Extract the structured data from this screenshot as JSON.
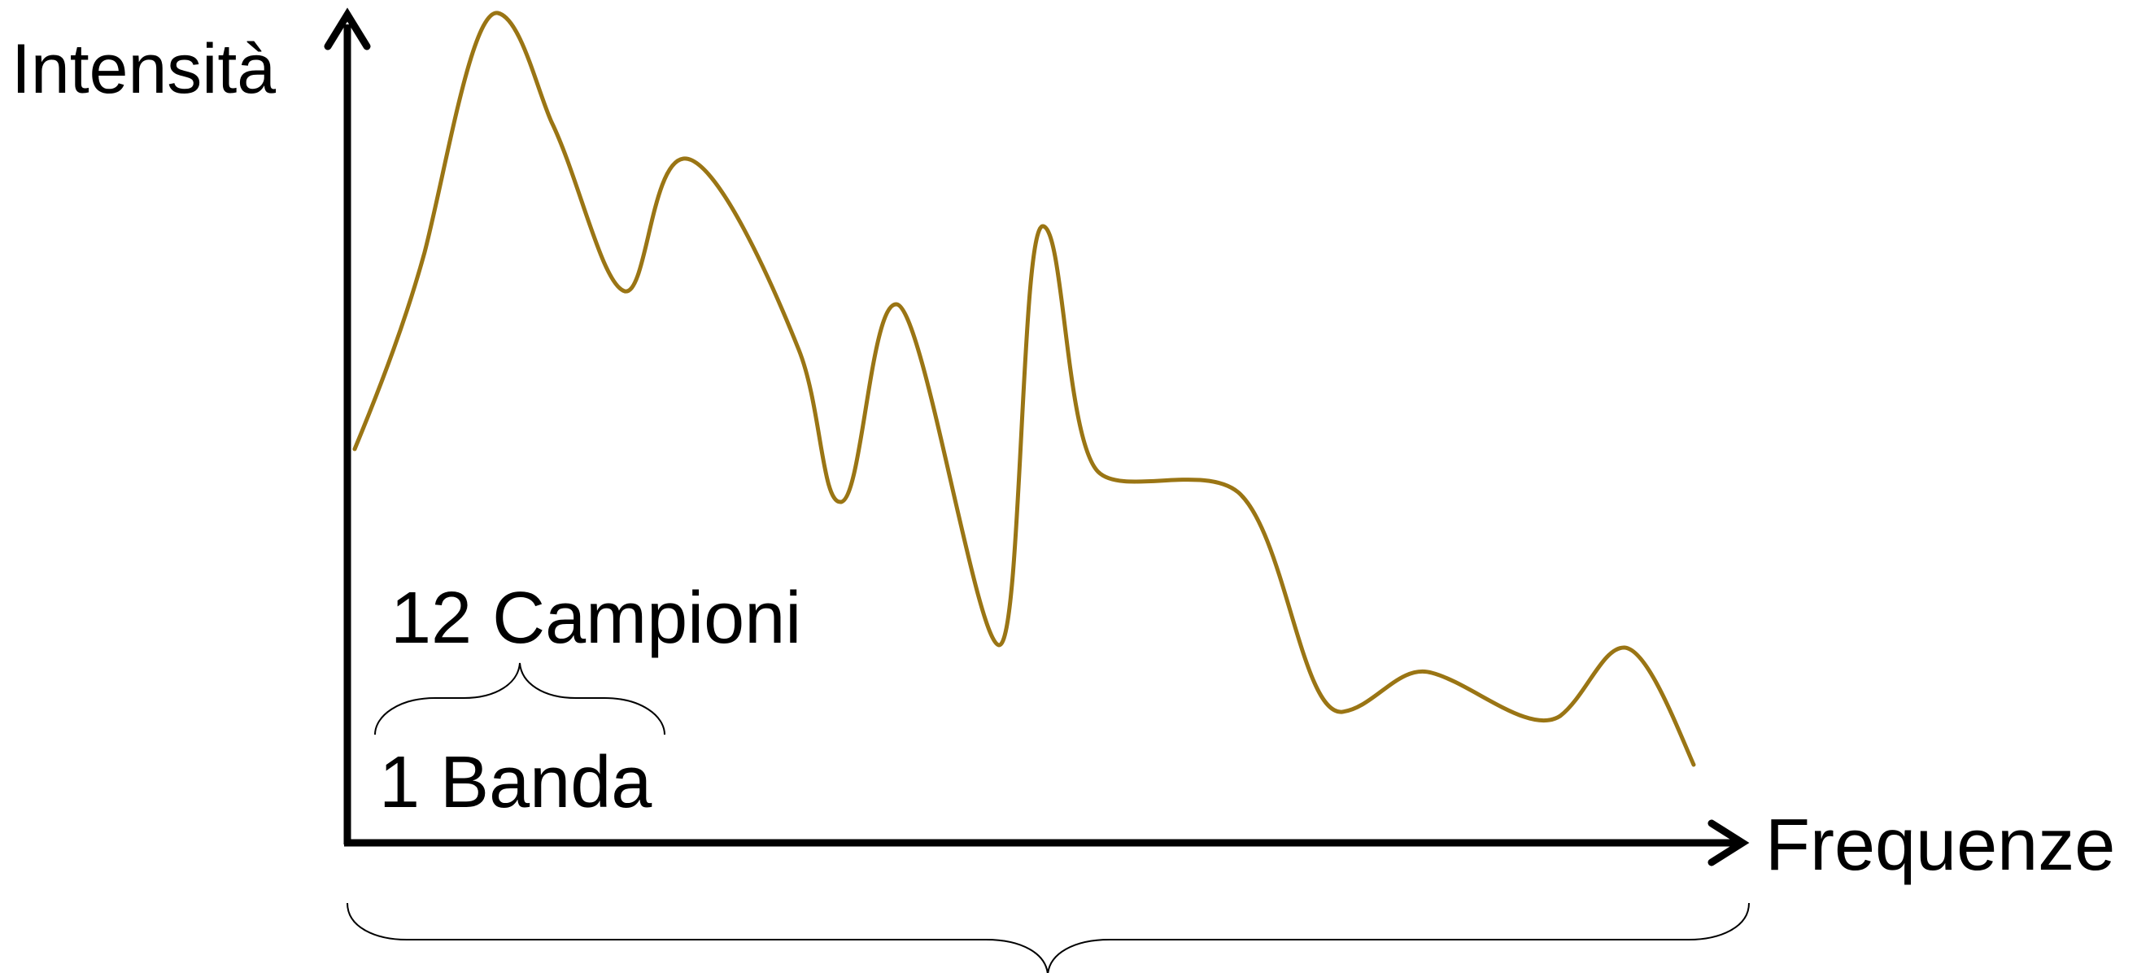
{
  "axes": {
    "y_label": "Intensità",
    "x_label": "Frequenze"
  },
  "annotations": {
    "samples_label": "12 Campioni",
    "band_label": "1 Banda"
  },
  "colors": {
    "spectrum": "#9a7514",
    "axes": "#000000",
    "text": "#000000"
  },
  "icons": {
    "y_arrow": "arrow-up-icon",
    "x_arrow": "arrow-right-icon"
  }
}
